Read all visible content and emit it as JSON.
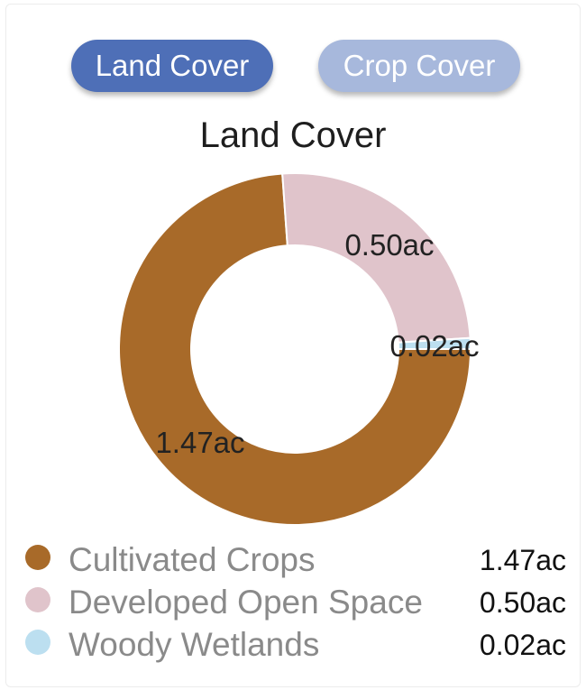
{
  "tabs": {
    "land_cover": "Land Cover",
    "crop_cover": "Crop Cover"
  },
  "colors": {
    "active_tab": "#4e6fb7",
    "inactive_tab": "#a7b8dc"
  },
  "chart_data": {
    "type": "pie",
    "title": "Land Cover",
    "donut": true,
    "legend_position": "bottom",
    "categories": [
      "Cultivated Crops",
      "Developed Open Space",
      "Woody Wetlands"
    ],
    "values": [
      1.47,
      0.5,
      0.02
    ],
    "value_labels": [
      "1.47ac",
      "0.50ac",
      "0.02ac"
    ],
    "unit": "ac",
    "colors": [
      "#a86a29",
      "#e0c4cb",
      "#bcdff0"
    ]
  }
}
